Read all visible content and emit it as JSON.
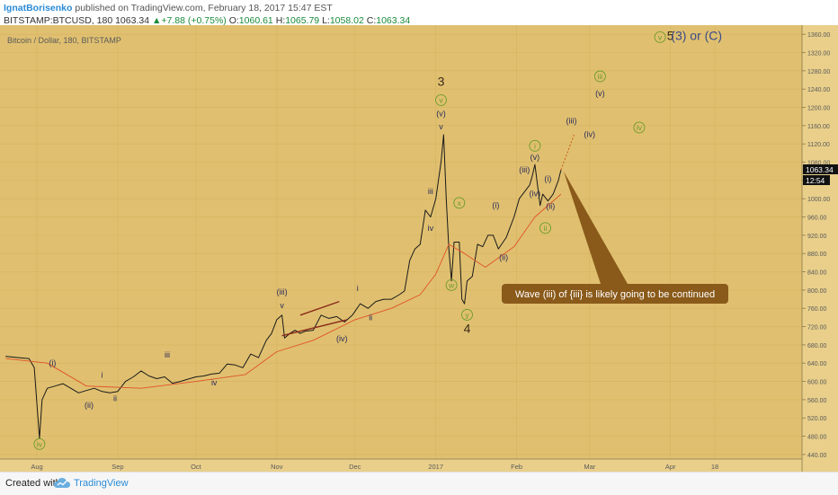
{
  "header": {
    "author": "IgnatBorisenko",
    "published": " published on TradingView.com, February 18, 2017 15:47 EST",
    "symbol": "BITSTAMP:BTCUSD, 180",
    "last": "1063.34",
    "change": "+7.88 (+0.75%)",
    "o_label": "O:",
    "o": "1060.61",
    "h_label": "H:",
    "h": "1065.79",
    "l_label": "L:",
    "l": "1058.02",
    "c_label": "C:",
    "c": "1063.34"
  },
  "footer": {
    "created_with": "Created with",
    "brand": "TradingView"
  },
  "colors": {
    "background": "#e0c070",
    "price_line": "#1a1a1a",
    "ma_line": "#e0522a",
    "circle_label": "#6a9a2a",
    "wave_text_dark": "#2a2a5a",
    "annotation_box": "#8a5a1a",
    "title_blue": "#3a4a8a",
    "axis_text": "#5a5a5a"
  },
  "chart_data": {
    "type": "line",
    "title": "Bitcoin / Dollar, 180, BITSTAMP",
    "ylim": [
      430,
      1380
    ],
    "y_ticks": [
      440,
      480,
      520,
      560,
      600,
      640,
      680,
      720,
      760,
      800,
      840,
      880,
      920,
      960,
      1000,
      1040,
      1080,
      1120,
      1160,
      1200,
      1240,
      1280,
      1320,
      1360
    ],
    "price_labels": {
      "last": "1063.34",
      "countdown": "12:54"
    },
    "x_ticks": [
      {
        "label": "Aug",
        "date": "2016-08-01"
      },
      {
        "label": "Sep",
        "date": "2016-09-01"
      },
      {
        "label": "Oct",
        "date": "2016-10-01"
      },
      {
        "label": "Nov",
        "date": "2016-11-01"
      },
      {
        "label": "Dec",
        "date": "2016-12-01"
      },
      {
        "label": "2017",
        "date": "2017-01-01"
      },
      {
        "label": "Feb",
        "date": "2017-02-01"
      },
      {
        "label": "Mar",
        "date": "2017-03-01"
      },
      {
        "label": "Apr",
        "date": "2017-04-01"
      },
      {
        "label": "18",
        "date": "2017-04-18"
      }
    ],
    "series": [
      {
        "kind": "price",
        "points": [
          [
            "2016-07-20",
            655
          ],
          [
            "2016-07-25",
            652
          ],
          [
            "2016-07-29",
            650
          ],
          [
            "2016-07-31",
            630
          ],
          [
            "2016-08-02",
            475
          ],
          [
            "2016-08-03",
            560
          ],
          [
            "2016-08-05",
            585
          ],
          [
            "2016-08-08",
            590
          ],
          [
            "2016-08-11",
            595
          ],
          [
            "2016-08-14",
            585
          ],
          [
            "2016-08-17",
            575
          ],
          [
            "2016-08-20",
            580
          ],
          [
            "2016-08-23",
            585
          ],
          [
            "2016-08-26",
            578
          ],
          [
            "2016-08-29",
            575
          ],
          [
            "2016-09-01",
            578
          ],
          [
            "2016-09-04",
            600
          ],
          [
            "2016-09-07",
            610
          ],
          [
            "2016-09-10",
            623
          ],
          [
            "2016-09-13",
            612
          ],
          [
            "2016-09-16",
            606
          ],
          [
            "2016-09-19",
            610
          ],
          [
            "2016-09-22",
            596
          ],
          [
            "2016-09-25",
            600
          ],
          [
            "2016-09-28",
            605
          ],
          [
            "2016-10-01",
            610
          ],
          [
            "2016-10-04",
            612
          ],
          [
            "2016-10-07",
            616
          ],
          [
            "2016-10-10",
            618
          ],
          [
            "2016-10-13",
            638
          ],
          [
            "2016-10-16",
            636
          ],
          [
            "2016-10-19",
            630
          ],
          [
            "2016-10-22",
            660
          ],
          [
            "2016-10-25",
            652
          ],
          [
            "2016-10-28",
            690
          ],
          [
            "2016-10-30",
            705
          ],
          [
            "2016-11-01",
            735
          ],
          [
            "2016-11-03",
            745
          ],
          [
            "2016-11-04",
            695
          ],
          [
            "2016-11-06",
            705
          ],
          [
            "2016-11-08",
            712
          ],
          [
            "2016-11-10",
            705
          ],
          [
            "2016-11-12",
            710
          ],
          [
            "2016-11-15",
            712
          ],
          [
            "2016-11-18",
            745
          ],
          [
            "2016-11-21",
            738
          ],
          [
            "2016-11-24",
            742
          ],
          [
            "2016-11-27",
            730
          ],
          [
            "2016-11-30",
            745
          ],
          [
            "2016-12-03",
            770
          ],
          [
            "2016-12-06",
            760
          ],
          [
            "2016-12-09",
            775
          ],
          [
            "2016-12-12",
            780
          ],
          [
            "2016-12-15",
            780
          ],
          [
            "2016-12-18",
            790
          ],
          [
            "2016-12-20",
            798
          ],
          [
            "2016-12-22",
            865
          ],
          [
            "2016-12-24",
            890
          ],
          [
            "2016-12-26",
            900
          ],
          [
            "2016-12-28",
            975
          ],
          [
            "2016-12-30",
            960
          ],
          [
            "2017-01-01",
            1000
          ],
          [
            "2017-01-03",
            1080
          ],
          [
            "2017-01-04",
            1140
          ],
          [
            "2017-01-05",
            1000
          ],
          [
            "2017-01-06",
            890
          ],
          [
            "2017-01-07",
            820
          ],
          [
            "2017-01-08",
            905
          ],
          [
            "2017-01-10",
            905
          ],
          [
            "2017-01-11",
            780
          ],
          [
            "2017-01-12",
            770
          ],
          [
            "2017-01-13",
            820
          ],
          [
            "2017-01-15",
            830
          ],
          [
            "2017-01-17",
            900
          ],
          [
            "2017-01-19",
            895
          ],
          [
            "2017-01-21",
            920
          ],
          [
            "2017-01-23",
            920
          ],
          [
            "2017-01-25",
            890
          ],
          [
            "2017-01-28",
            915
          ],
          [
            "2017-01-31",
            960
          ],
          [
            "2017-02-02",
            1000
          ],
          [
            "2017-02-04",
            1015
          ],
          [
            "2017-02-06",
            1030
          ],
          [
            "2017-02-07",
            1050
          ],
          [
            "2017-02-08",
            1075
          ],
          [
            "2017-02-10",
            985
          ],
          [
            "2017-02-11",
            1010
          ],
          [
            "2017-02-13",
            995
          ],
          [
            "2017-02-15",
            1010
          ],
          [
            "2017-02-17",
            1040
          ],
          [
            "2017-02-18",
            1063
          ]
        ]
      },
      {
        "kind": "moving_average",
        "points": [
          [
            "2016-07-20",
            650
          ],
          [
            "2016-08-05",
            640
          ],
          [
            "2016-08-20",
            590
          ],
          [
            "2016-09-10",
            585
          ],
          [
            "2016-10-01",
            600
          ],
          [
            "2016-10-20",
            615
          ],
          [
            "2016-11-01",
            665
          ],
          [
            "2016-11-15",
            690
          ],
          [
            "2016-12-01",
            735
          ],
          [
            "2016-12-15",
            760
          ],
          [
            "2016-12-26",
            790
          ],
          [
            "2017-01-01",
            835
          ],
          [
            "2017-01-06",
            900
          ],
          [
            "2017-01-12",
            880
          ],
          [
            "2017-01-20",
            850
          ],
          [
            "2017-01-31",
            895
          ],
          [
            "2017-02-08",
            960
          ],
          [
            "2017-02-18",
            1010
          ]
        ]
      }
    ],
    "projection": [
      [
        "2017-02-18",
        1063
      ],
      [
        "2017-02-23",
        1140
      ]
    ],
    "channel_lines": [
      [
        [
          "2016-11-03",
          700
        ],
        [
          "2016-11-28",
          735
        ]
      ],
      [
        [
          "2016-11-10",
          745
        ],
        [
          "2016-11-25",
          775
        ]
      ]
    ],
    "annotations": [
      {
        "text": "5",
        "date": "2017-04-01",
        "price": 1348,
        "style": "big-dark"
      },
      {
        "text": "(3) or (C)",
        "date": "2017-04-11",
        "price": 1348,
        "style": "big-blue"
      },
      {
        "text": "v",
        "date": "2017-03-28",
        "price": 1348,
        "style": "circle"
      },
      {
        "text": "iii",
        "date": "2017-03-05",
        "price": 1262,
        "style": "circle"
      },
      {
        "text": "(v)",
        "date": "2017-03-05",
        "price": 1225,
        "style": "blue"
      },
      {
        "text": "iv",
        "date": "2017-03-20",
        "price": 1150,
        "style": "circle"
      },
      {
        "text": "(iii)",
        "date": "2017-02-22",
        "price": 1165,
        "style": "blue"
      },
      {
        "text": "(iv)",
        "date": "2017-03-01",
        "price": 1135,
        "style": "blue"
      },
      {
        "text": "i",
        "date": "2017-02-08",
        "price": 1110,
        "style": "circle"
      },
      {
        "text": "(v)",
        "date": "2017-02-08",
        "price": 1085,
        "style": "blue"
      },
      {
        "text": "(iii)",
        "date": "2017-02-04",
        "price": 1057,
        "style": "blue"
      },
      {
        "text": "(i)",
        "date": "2017-02-13",
        "price": 1038,
        "style": "blue"
      },
      {
        "text": "(iv)",
        "date": "2017-02-08",
        "price": 1005,
        "style": "blue"
      },
      {
        "text": "(ii)",
        "date": "2017-02-14",
        "price": 978,
        "style": "blue"
      },
      {
        "text": "ii",
        "date": "2017-02-12",
        "price": 930,
        "style": "circle"
      },
      {
        "text": "(i)",
        "date": "2017-01-24",
        "price": 980,
        "style": "blue"
      },
      {
        "text": "(ii)",
        "date": "2017-01-27",
        "price": 866,
        "style": "blue"
      },
      {
        "text": "3",
        "date": "2017-01-03",
        "price": 1247,
        "style": "big-dark"
      },
      {
        "text": "v",
        "date": "2017-01-03",
        "price": 1210,
        "style": "circle"
      },
      {
        "text": "(v)",
        "date": "2017-01-03",
        "price": 1180,
        "style": "blue"
      },
      {
        "text": "v",
        "date": "2017-01-03",
        "price": 1152,
        "style": "dark"
      },
      {
        "text": "iii",
        "date": "2016-12-30",
        "price": 1010,
        "style": "dark"
      },
      {
        "text": "iv",
        "date": "2016-12-30",
        "price": 930,
        "style": "dark"
      },
      {
        "text": "x",
        "date": "2017-01-10",
        "price": 985,
        "style": "circle"
      },
      {
        "text": "w",
        "date": "2017-01-07",
        "price": 805,
        "style": "circle"
      },
      {
        "text": "y",
        "date": "2017-01-13",
        "price": 740,
        "style": "circle"
      },
      {
        "text": "4",
        "date": "2017-01-13",
        "price": 706,
        "style": "big-dark"
      },
      {
        "text": "(iii)",
        "date": "2016-11-03",
        "price": 790,
        "style": "blue"
      },
      {
        "text": "v",
        "date": "2016-11-03",
        "price": 760,
        "style": "dark"
      },
      {
        "text": "i",
        "date": "2016-12-02",
        "price": 798,
        "style": "dark"
      },
      {
        "text": "ii",
        "date": "2016-12-07",
        "price": 734,
        "style": "dark"
      },
      {
        "text": "(iv)",
        "date": "2016-11-26",
        "price": 688,
        "style": "blue"
      },
      {
        "text": "iii",
        "date": "2016-09-20",
        "price": 652,
        "style": "dark"
      },
      {
        "text": "iv",
        "date": "2016-10-08",
        "price": 591,
        "style": "dark"
      },
      {
        "text": "i",
        "date": "2016-08-26",
        "price": 608,
        "style": "dark"
      },
      {
        "text": "ii",
        "date": "2016-08-31",
        "price": 557,
        "style": "dark"
      },
      {
        "text": "(i)",
        "date": "2016-08-07",
        "price": 635,
        "style": "blue"
      },
      {
        "text": "(ii)",
        "date": "2016-08-21",
        "price": 542,
        "style": "blue"
      },
      {
        "text": "iv",
        "date": "2016-08-02",
        "price": 457,
        "style": "circle"
      }
    ],
    "callout": {
      "text": "Wave (iii) of {iii} is likely going to be continued",
      "date": "2017-02-19",
      "price": 1060
    }
  }
}
